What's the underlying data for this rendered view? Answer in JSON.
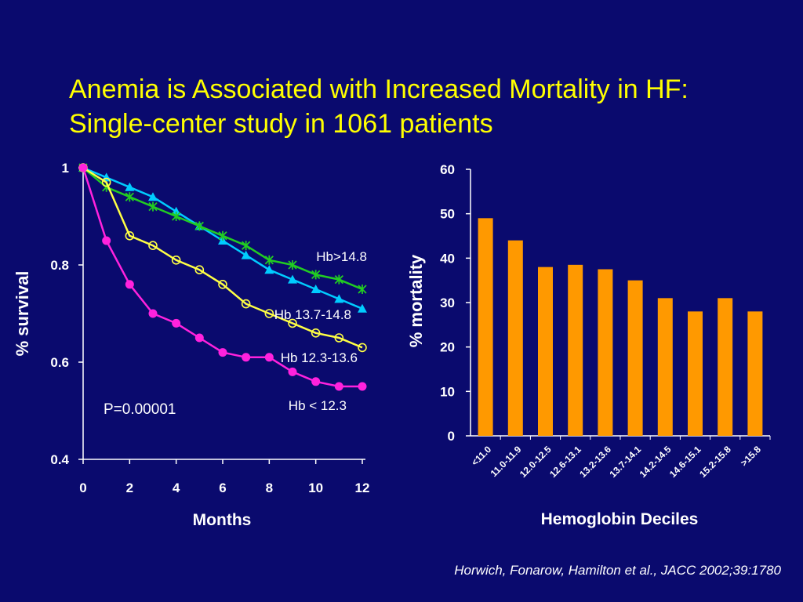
{
  "title": {
    "line1": "Anemia is Associated with Increased Mortality in HF:",
    "line2": "Single-center study in 1061 patients"
  },
  "citation": "Horwich, Fonarow, Hamilton et al., JACC 2002;39:1780",
  "colors": {
    "background": "#0a0a6e",
    "title": "#ffff00",
    "bars": "#ff9900",
    "hb_gt_14_8": "#00ccff",
    "hb_13_7_14_8": "#22cc22",
    "hb_12_3_13_6": "#ffff44",
    "hb_lt_12_3": "#ff22dd"
  },
  "chart_data": [
    {
      "type": "line",
      "xlabel": "Months",
      "ylabel": "% survival",
      "xlim": [
        0,
        12
      ],
      "ylim": [
        0.4,
        1
      ],
      "x_ticks": [
        "0",
        "2",
        "4",
        "6",
        "8",
        "10",
        "12"
      ],
      "y_ticks": [
        "0.4",
        "0.6",
        "0.8",
        "1"
      ],
      "grid": false,
      "annotation": "P=0.00001",
      "x": [
        0,
        1,
        2,
        3,
        4,
        5,
        6,
        7,
        8,
        9,
        10,
        11,
        12
      ],
      "series": [
        {
          "name": "Hb>14.8",
          "marker": "triangle",
          "color": "#00ccff",
          "values": [
            1,
            0.98,
            0.96,
            0.94,
            0.91,
            0.88,
            0.85,
            0.82,
            0.79,
            0.77,
            0.75,
            0.73,
            0.71
          ]
        },
        {
          "name": "Hb 13.7-14.8",
          "marker": "star",
          "color": "#22cc22",
          "values": [
            1,
            0.96,
            0.94,
            0.92,
            0.9,
            0.88,
            0.86,
            0.84,
            0.81,
            0.8,
            0.78,
            0.77,
            0.75
          ]
        },
        {
          "name": "Hb 12.3-13.6",
          "marker": "circle-open",
          "color": "#ffff44",
          "values": [
            1,
            0.97,
            0.86,
            0.84,
            0.81,
            0.79,
            0.76,
            0.72,
            0.7,
            0.68,
            0.66,
            0.65,
            0.63
          ]
        },
        {
          "name": "Hb < 12.3",
          "marker": "circle-filled",
          "color": "#ff22dd",
          "values": [
            1,
            0.85,
            0.76,
            0.7,
            0.68,
            0.65,
            0.62,
            0.61,
            0.61,
            0.58,
            0.56,
            0.55,
            0.55
          ]
        }
      ]
    },
    {
      "type": "bar",
      "xlabel": "Hemoglobin Deciles",
      "ylabel": "% mortality",
      "ylim": [
        0,
        60
      ],
      "y_ticks": [
        "0",
        "10",
        "20",
        "30",
        "40",
        "50",
        "60"
      ],
      "grid": false,
      "categories": [
        "<11.0",
        "11.0-11.9",
        "12.0-12.5",
        "12.6-13.1",
        "13.2-13.6",
        "13.7-14.1",
        "14.2-14.5",
        "14.6-15.1",
        "15.2-15.8",
        ">15.8"
      ],
      "values": [
        49,
        44,
        38,
        38.5,
        37.5,
        35,
        31,
        28,
        31,
        28
      ]
    }
  ]
}
